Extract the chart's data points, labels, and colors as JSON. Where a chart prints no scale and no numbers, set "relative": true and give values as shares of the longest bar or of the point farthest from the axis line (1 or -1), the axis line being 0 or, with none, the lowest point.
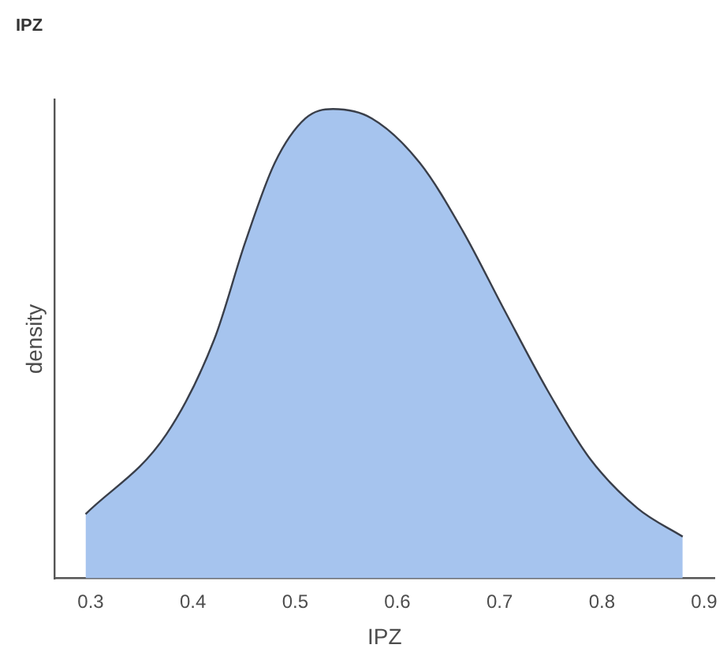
{
  "chart_data": {
    "type": "area",
    "title": "IPZ",
    "xlabel": "IPZ",
    "ylabel": "density",
    "relative": true,
    "x": [
      0.295,
      0.374,
      0.421,
      0.451,
      0.48,
      0.51,
      0.537,
      0.575,
      0.622,
      0.664,
      0.705,
      0.747,
      0.788,
      0.835,
      0.879
    ],
    "series": [
      {
        "color": "#a6c4ee",
        "values": [
          0.137,
          0.307,
          0.51,
          0.715,
          0.885,
          0.98,
          1,
          0.98,
          0.885,
          0.74,
          0.57,
          0.4,
          0.256,
          0.149,
          0.089
        ]
      }
    ],
    "xlim": [
      0.265,
      0.91
    ],
    "xticks": [
      0.3,
      0.4,
      0.5,
      0.6,
      0.7,
      0.8,
      0.9
    ],
    "grid": false,
    "legend": false
  }
}
